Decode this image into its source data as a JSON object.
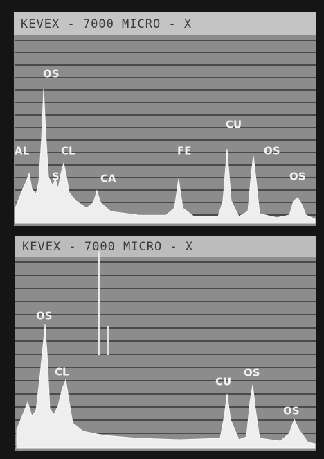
{
  "panels": [
    {
      "header": "KEVEX - 7000 MICRO - X",
      "peaks": [
        "AL",
        "OS",
        "S",
        "CL",
        "CA",
        "FE",
        "CU",
        "OS",
        "OS"
      ]
    },
    {
      "header": "KEVEX - 7000 MICRO - X",
      "peaks": [
        "OS",
        "CL",
        "CU",
        "OS",
        "OS"
      ]
    }
  ]
}
